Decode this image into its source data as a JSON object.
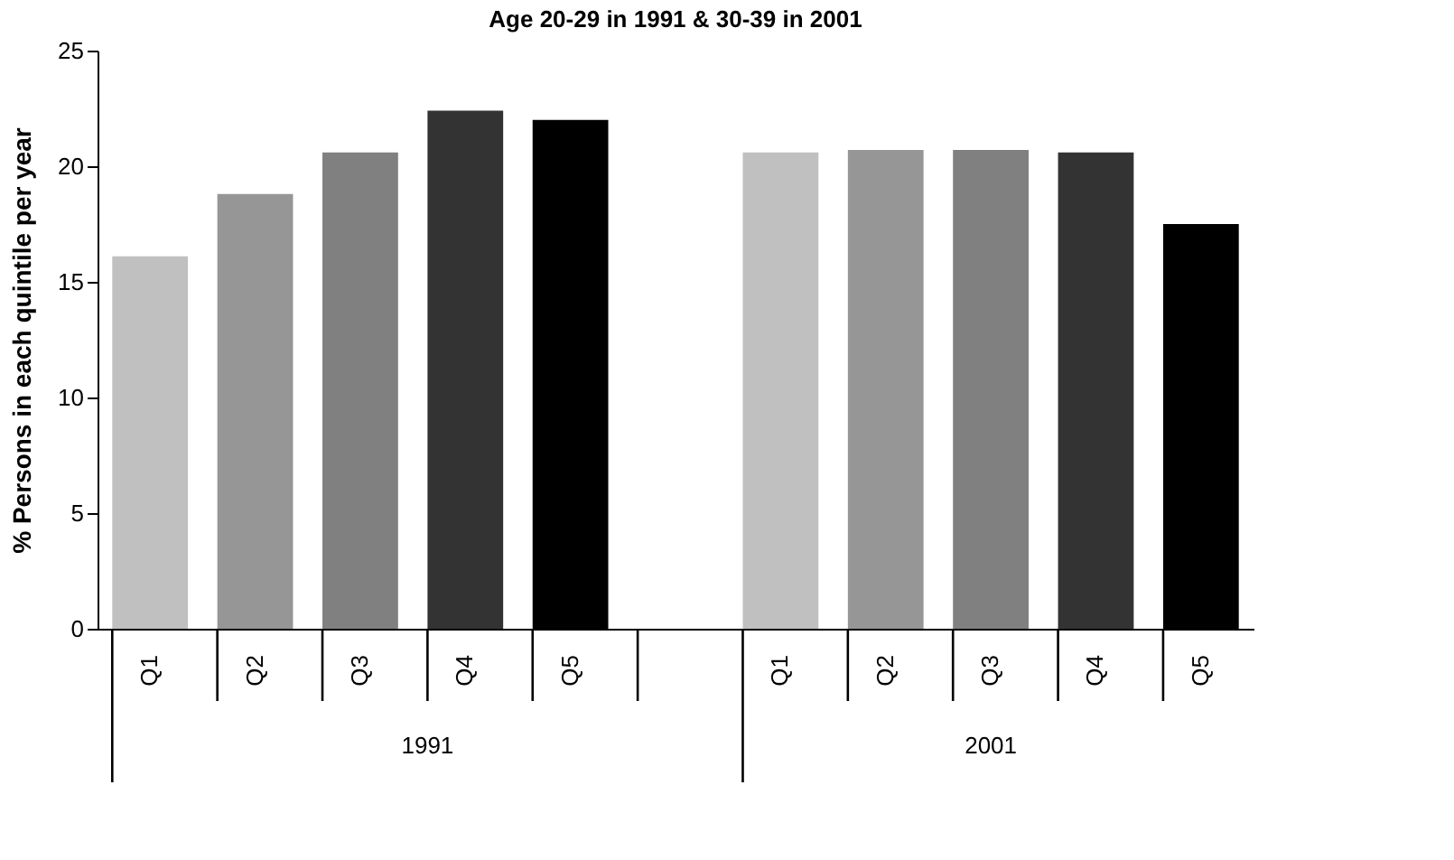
{
  "chart_data": {
    "type": "bar",
    "title": "Age 20-29 in 1991 & 30-39 in 2001",
    "ylabel": "% Persons  in each quintile per year",
    "categories": [
      "Q1",
      "Q2",
      "Q3",
      "Q4",
      "Q5",
      null,
      "Q1",
      "Q2",
      "Q3",
      "Q4",
      "Q5"
    ],
    "values": [
      16.1,
      18.8,
      20.6,
      22.4,
      22.0,
      null,
      20.6,
      20.7,
      20.7,
      20.6,
      17.5
    ],
    "colors": [
      "#c0c0c0",
      "#969696",
      "#808080",
      "#333333",
      "#000000",
      null,
      "#c0c0c0",
      "#969696",
      "#808080",
      "#333333",
      "#000000"
    ],
    "annotations": [
      "1991",
      "2001"
    ],
    "ylim": [
      0,
      25
    ],
    "yticks": [
      0,
      5,
      10,
      15,
      20,
      25
    ],
    "grid": false
  }
}
